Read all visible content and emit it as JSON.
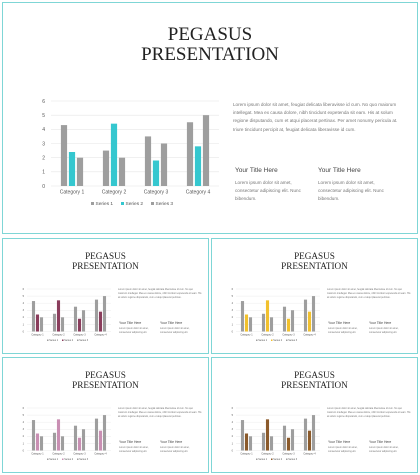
{
  "colors": {
    "border": "#7fd6d6",
    "series1": "#9e9e9e",
    "series3": "#9e9e9e",
    "gridline": "#e6e6e6",
    "axis_text": "#555555"
  },
  "slides": [
    {
      "title": "PEGASUS\nPRESENTATION",
      "series2_color": "#35c7cf",
      "body_text": "Lorem ipsum dolor sit amet, feugiat delicata liberavisse id cum. No quo maiorum intellegat. Mea ex causa dolore, nibh tincidunt expetenda sit eam. His at solum regione disputando, cum et atqui placerat pertinax. Per amet nonumy pericula at. Iriure tincidunt percipit at, feugiat delicata liberavisse id cum.",
      "headings": [
        "Your Title Here",
        "Your Title Here"
      ],
      "side_texts": [
        "Lorem ipsum dolor sit amet, consectetur adipiscing elit. Nunc bibendum.",
        "Lorem ipsum dolor sit amet, consectetur adipiscing elit. Nunc bibendum."
      ]
    },
    {
      "title": "PEGASUS\nPRESENTATION",
      "series2_color": "#8a3d5c",
      "body_text": "Lorem ipsum dolor sit amet, feugiat delicata liberavisse id cum. No quo maiorum intellegat. Mea ex causa dolore, nibh tincidunt expetenda sit eam. His at solum regione disputando, cum et atqui placerat pertinax.",
      "headings": [
        "Your Title Here",
        "Your Title Here"
      ],
      "side_texts": [
        "Lorem ipsum dolor sit amet, consectetur adipiscing elit.",
        "Lorem ipsum dolor sit amet, consectetur adipiscing elit."
      ]
    },
    {
      "title": "PEGASUS\nPRESENTATION",
      "series2_color": "#f2c12e",
      "body_text": "Lorem ipsum dolor sit amet, feugiat delicata liberavisse id cum. No quo maiorum intellegat. Mea ex causa dolore, nibh tincidunt expetenda sit eam. His at solum regione disputando, cum et atqui placerat pertinax.",
      "headings": [
        "Your Title Here",
        "Your Title Here"
      ],
      "side_texts": [
        "Lorem ipsum dolor sit amet, consectetur adipiscing elit.",
        "Lorem ipsum dolor sit amet, consectetur adipiscing elit."
      ]
    },
    {
      "title": "PEGASUS\nPRESENTATION",
      "series2_color": "#c98fb3",
      "body_text": "Lorem ipsum dolor sit amet, feugiat delicata liberavisse id cum. No quo maiorum intellegat. Mea ex causa dolore, nibh tincidunt expetenda sit eam. His at solum regione disputando, cum et atqui placerat pertinax.",
      "headings": [
        "Your Title Here",
        "Your Title Here"
      ],
      "side_texts": [
        "Lorem ipsum dolor sit amet, consectetur adipiscing elit.",
        "Lorem ipsum dolor sit amet, consectetur adipiscing elit."
      ]
    },
    {
      "title": "PEGASUS\nPRESENTATION",
      "series2_color": "#8b5a2b",
      "body_text": "Lorem ipsum dolor sit amet, feugiat delicata liberavisse id cum. No quo maiorum intellegat. Mea ex causa dolore, nibh tincidunt expetenda sit eam. His at solum regione disputando, cum et atqui placerat pertinax.",
      "headings": [
        "Your Title Here",
        "Your Title Here"
      ],
      "side_texts": [
        "Lorem ipsum dolor sit amet, consectetur adipiscing elit.",
        "Lorem ipsum dolor sit amet, consectetur adipiscing elit."
      ]
    }
  ],
  "chart_data": {
    "type": "bar",
    "categories": [
      "Category 1",
      "Category 2",
      "Category 3",
      "Category 4"
    ],
    "series": [
      {
        "name": "Series 1",
        "values": [
          4.3,
          2.5,
          3.5,
          4.5
        ]
      },
      {
        "name": "Series 2",
        "values": [
          2.4,
          4.4,
          1.8,
          2.8
        ]
      },
      {
        "name": "Series 3",
        "values": [
          2.0,
          2.0,
          3.0,
          5.0
        ]
      }
    ],
    "ylim": [
      0,
      6
    ],
    "yticks": [
      "0",
      "1",
      "2",
      "3",
      "4",
      "5",
      "6"
    ],
    "grid": true,
    "legend": "bottom"
  }
}
